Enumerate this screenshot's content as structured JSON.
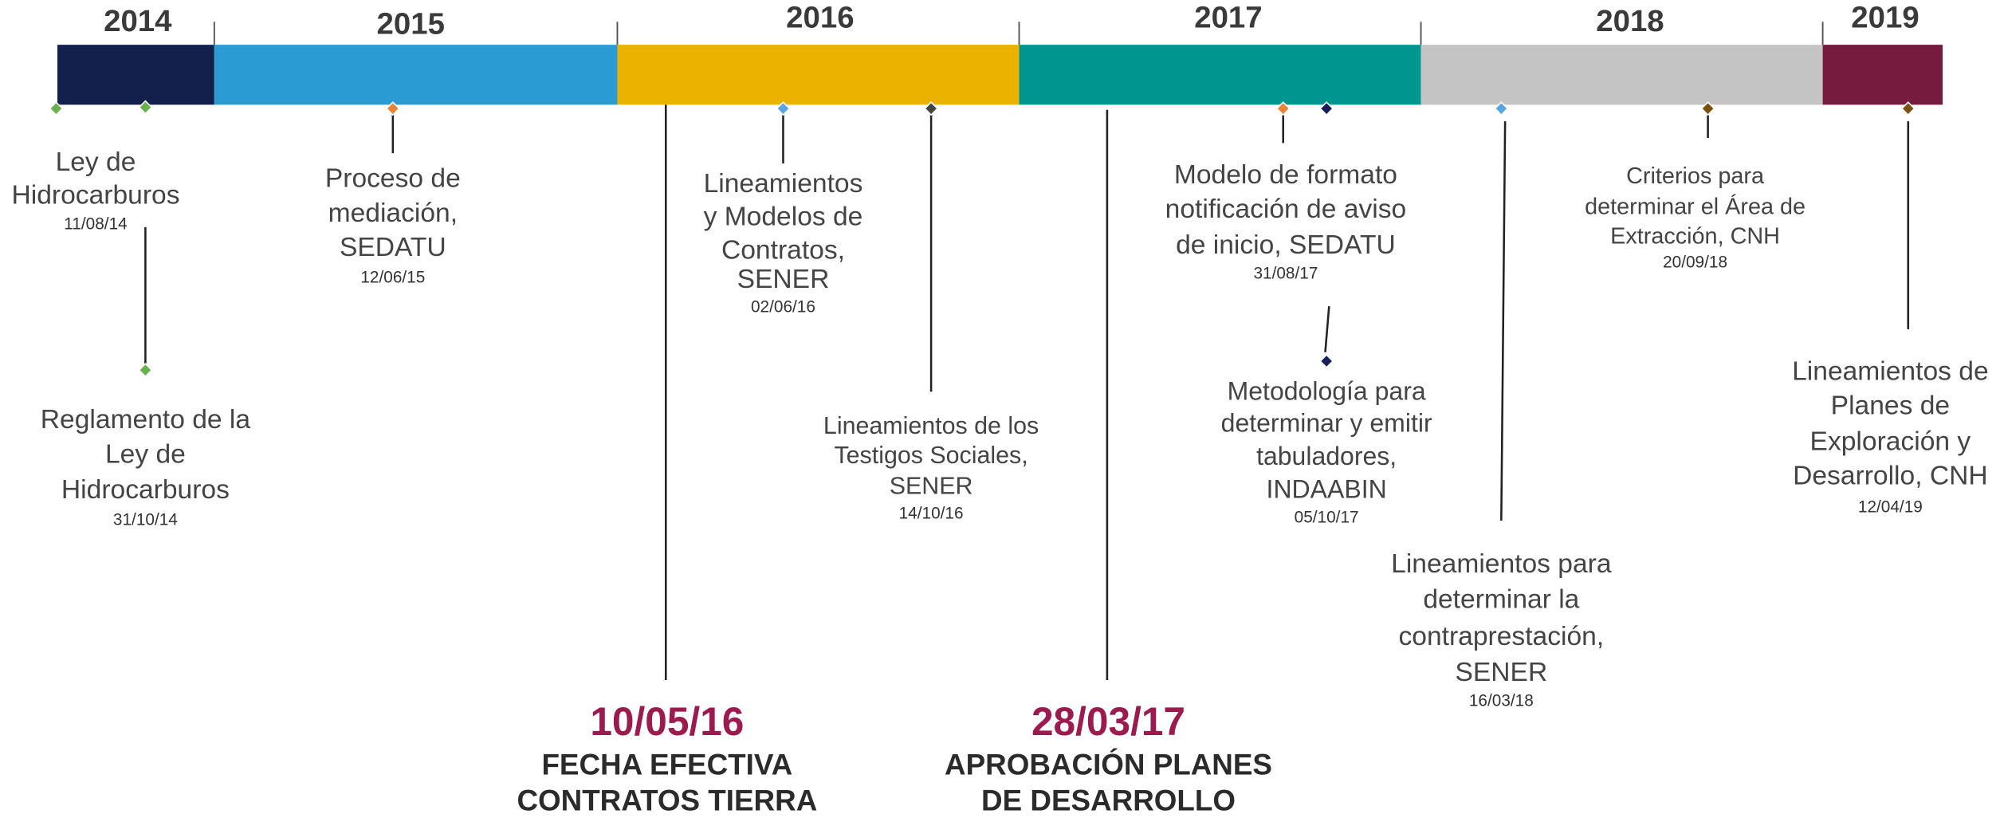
{
  "years": [
    {
      "label": "2014",
      "color": "#13204b"
    },
    {
      "label": "2015",
      "color": "#2b9bd3"
    },
    {
      "label": "2016",
      "color": "#ebb200"
    },
    {
      "label": "2017",
      "color": "#009690"
    },
    {
      "label": "2018",
      "color": "#c4c4c4"
    },
    {
      "label": "2019",
      "color": "#761a3e"
    }
  ],
  "events": [
    {
      "lines": [
        "Ley de",
        "Hidrocarburos"
      ],
      "date": "11/08/14"
    },
    {
      "lines": [
        "Reglamento de la",
        "Ley de",
        "Hidrocarburos"
      ],
      "date": "31/10/14"
    },
    {
      "lines": [
        "Proceso de",
        "mediación,",
        "SEDATU"
      ],
      "date": "12/06/15"
    },
    {
      "lines": [
        "Lineamientos",
        "y Modelos de",
        "Contratos,",
        "SENER"
      ],
      "date": "02/06/16"
    },
    {
      "lines": [
        "Lineamientos de los",
        "Testigos Sociales,",
        "SENER"
      ],
      "date": "14/10/16"
    },
    {
      "lines": [
        "Modelo de formato",
        "notificación de aviso",
        "de inicio, SEDATU"
      ],
      "date": "31/08/17"
    },
    {
      "lines": [
        "Metodología para",
        "determinar y emitir",
        "tabuladores,",
        "INDAABIN"
      ],
      "date": "05/10/17"
    },
    {
      "lines": [
        "Lineamientos para",
        "determinar la",
        "contraprestación,",
        "SENER"
      ],
      "date": "16/03/18"
    },
    {
      "lines": [
        "Criterios para",
        "determinar el Área de",
        "Extracción, CNH"
      ],
      "date": "20/09/18"
    },
    {
      "lines": [
        "Lineamientos de",
        "Planes de",
        "Exploración y",
        "Desarrollo, CNH"
      ],
      "date": "12/04/19"
    }
  ],
  "highlights": [
    {
      "date": "10/05/16",
      "lines": [
        "FECHA EFECTIVA",
        "CONTRATOS TIERRA"
      ]
    },
    {
      "date": "28/03/17",
      "lines": [
        "APROBACIÓN PLANES",
        "DE DESARROLLO"
      ]
    }
  ]
}
